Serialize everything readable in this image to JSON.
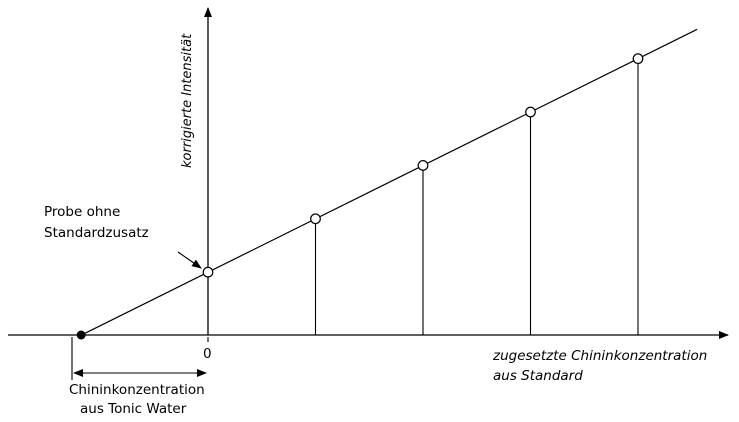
{
  "chart_data": {
    "type": "scatter",
    "method": "standard-addition",
    "x_axis_label_line1": "zugesetzte Chininkonzentration",
    "x_axis_label_line2": "aus Standard",
    "y_axis_label": "korrigierte Intensität",
    "origin_tick_label": "0",
    "points": [
      {
        "x": 0,
        "y": 1
      },
      {
        "x": 1,
        "y": 1.85
      },
      {
        "x": 2,
        "y": 2.7
      },
      {
        "x": 3,
        "y": 3.55
      },
      {
        "x": 4,
        "y": 4.4
      }
    ],
    "x_intercept": -1.18,
    "line_style": "open circles on a straight fit line, solid dot at x-intercept",
    "annotations": {
      "sample_line1": "Probe ohne",
      "sample_line2": "Standardzusatz",
      "result_line1": "Chininkonzentration",
      "result_line2": "aus Tonic Water"
    }
  }
}
